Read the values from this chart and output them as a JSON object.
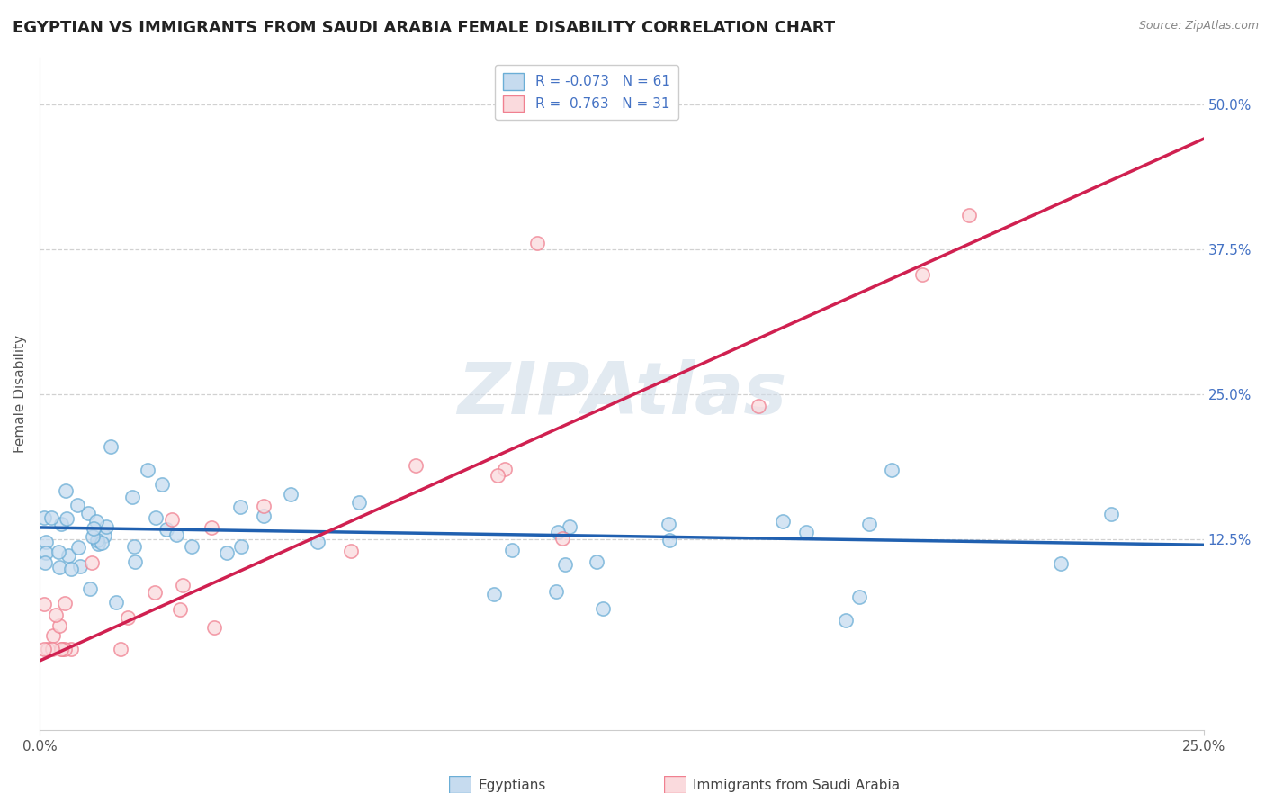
{
  "title": "EGYPTIAN VS IMMIGRANTS FROM SAUDI ARABIA FEMALE DISABILITY CORRELATION CHART",
  "source": "Source: ZipAtlas.com",
  "ylabel": "Female Disability",
  "blue_color": "#6baed6",
  "blue_fill": "#c6dbef",
  "pink_color": "#f08090",
  "pink_fill": "#fadadd",
  "trend_blue": "#2060b0",
  "trend_pink": "#d02050",
  "watermark_color": "#d0dce8",
  "xlim": [
    0.0,
    0.25
  ],
  "ylim": [
    -0.04,
    0.54
  ],
  "y_ticks": [
    0.125,
    0.25,
    0.375,
    0.5
  ],
  "x_ticks": [
    0.0,
    0.25
  ],
  "blue_R": -0.073,
  "blue_N": 61,
  "pink_R": 0.763,
  "pink_N": 31,
  "bg_color": "#ffffff",
  "grid_color": "#cccccc",
  "title_fontsize": 13,
  "label_fontsize": 11,
  "tick_fontsize": 11,
  "legend_fontsize": 11,
  "pink_trend_x0": 0.0,
  "pink_trend_y0": 0.02,
  "pink_trend_x1": 0.25,
  "pink_trend_y1": 0.47,
  "blue_trend_x0": 0.0,
  "blue_trend_y0": 0.135,
  "blue_trend_x1": 0.25,
  "blue_trend_y1": 0.12
}
